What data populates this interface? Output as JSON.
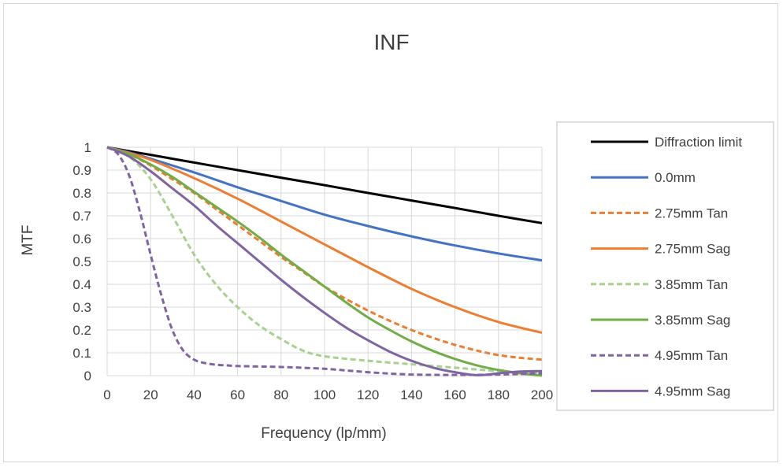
{
  "chart_data": {
    "type": "line",
    "title": "INF",
    "xlabel": "Frequency (lp/mm)",
    "ylabel": "MTF",
    "xlim": [
      0,
      200
    ],
    "ylim": [
      0,
      1
    ],
    "xticks": [
      0,
      20,
      40,
      60,
      80,
      100,
      120,
      140,
      160,
      180,
      200
    ],
    "yticks": [
      0,
      0.1,
      0.2,
      0.3,
      0.4,
      0.5,
      0.6,
      0.7,
      0.8,
      0.9,
      1
    ],
    "grid": true,
    "legend_position": "right",
    "series": [
      {
        "name": "Diffraction limit",
        "color": "#000000",
        "dash": "solid",
        "x": [
          0,
          10,
          20,
          40,
          60,
          80,
          100,
          120,
          140,
          160,
          180,
          200
        ],
        "y": [
          1.0,
          0.983,
          0.967,
          0.933,
          0.9,
          0.867,
          0.834,
          0.8,
          0.767,
          0.734,
          0.7,
          0.668
        ]
      },
      {
        "name": "0.0mm",
        "color": "#4472C4",
        "dash": "solid",
        "x": [
          0,
          10,
          20,
          40,
          60,
          80,
          100,
          120,
          140,
          160,
          180,
          200
        ],
        "y": [
          1.0,
          0.978,
          0.95,
          0.89,
          0.825,
          0.765,
          0.705,
          0.655,
          0.61,
          0.57,
          0.535,
          0.505
        ]
      },
      {
        "name": "2.75mm Tan",
        "color": "#ED7D31",
        "dash": "dashed",
        "x": [
          0,
          10,
          20,
          30,
          40,
          50,
          60,
          70,
          80,
          90,
          100,
          110,
          120,
          130,
          140,
          150,
          160,
          170,
          180,
          190,
          200
        ],
        "y": [
          1.0,
          0.97,
          0.92,
          0.86,
          0.8,
          0.73,
          0.66,
          0.59,
          0.52,
          0.455,
          0.39,
          0.335,
          0.285,
          0.24,
          0.2,
          0.165,
          0.135,
          0.11,
          0.09,
          0.078,
          0.07
        ]
      },
      {
        "name": "2.75mm Sag",
        "color": "#ED7D31",
        "dash": "solid",
        "x": [
          0,
          10,
          20,
          40,
          60,
          80,
          100,
          120,
          140,
          160,
          180,
          200
        ],
        "y": [
          1.0,
          0.975,
          0.945,
          0.865,
          0.775,
          0.675,
          0.575,
          0.475,
          0.38,
          0.3,
          0.235,
          0.188
        ]
      },
      {
        "name": "3.85mm Tan",
        "color": "#A9D18E",
        "dash": "dashed",
        "x": [
          0,
          10,
          20,
          30,
          40,
          50,
          60,
          70,
          80,
          90,
          100,
          120,
          140,
          160,
          180,
          200
        ],
        "y": [
          1.0,
          0.96,
          0.86,
          0.7,
          0.53,
          0.4,
          0.3,
          0.22,
          0.16,
          0.11,
          0.085,
          0.065,
          0.05,
          0.035,
          0.02,
          0.01
        ]
      },
      {
        "name": "3.85mm Sag",
        "color": "#70AD47",
        "dash": "solid",
        "x": [
          0,
          10,
          20,
          30,
          40,
          50,
          60,
          70,
          80,
          90,
          100,
          110,
          120,
          130,
          140,
          150,
          160,
          170,
          180,
          190,
          200
        ],
        "y": [
          1.0,
          0.97,
          0.925,
          0.87,
          0.805,
          0.74,
          0.675,
          0.605,
          0.53,
          0.46,
          0.39,
          0.32,
          0.255,
          0.2,
          0.15,
          0.108,
          0.073,
          0.045,
          0.025,
          0.01,
          0.0
        ]
      },
      {
        "name": "4.95mm Tan",
        "color": "#8064A2",
        "dash": "dashed",
        "x": [
          0,
          5,
          10,
          15,
          20,
          25,
          30,
          35,
          40,
          45,
          50,
          55,
          60,
          70,
          80,
          100,
          120,
          140,
          160,
          180,
          200
        ],
        "y": [
          1.0,
          0.97,
          0.88,
          0.72,
          0.53,
          0.35,
          0.2,
          0.11,
          0.07,
          0.055,
          0.048,
          0.045,
          0.042,
          0.04,
          0.038,
          0.03,
          0.015,
          0.005,
          0.003,
          0.005,
          0.01
        ]
      },
      {
        "name": "4.95mm Sag",
        "color": "#8064A2",
        "dash": "solid",
        "x": [
          0,
          10,
          20,
          30,
          40,
          50,
          60,
          70,
          80,
          90,
          100,
          110,
          120,
          130,
          140,
          150,
          160,
          170,
          180,
          190,
          200
        ],
        "y": [
          1.0,
          0.96,
          0.895,
          0.82,
          0.745,
          0.66,
          0.58,
          0.5,
          0.42,
          0.345,
          0.275,
          0.21,
          0.155,
          0.105,
          0.065,
          0.035,
          0.015,
          0.002,
          0.01,
          0.018,
          0.02
        ]
      }
    ]
  }
}
